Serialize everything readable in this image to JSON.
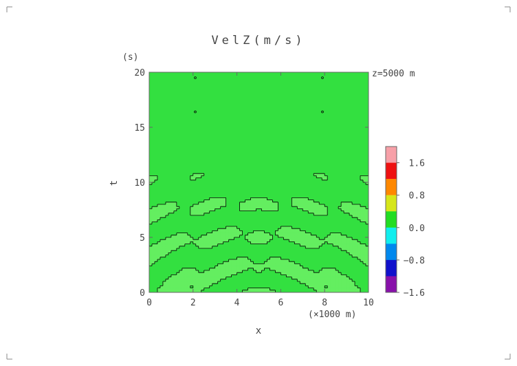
{
  "chart_data": {
    "type": "heatmap",
    "title": "VelZ(m/s)",
    "annotation": "z=5000 m",
    "xlabel": "x",
    "x_unit": "(×1000 m)",
    "ylabel": "t",
    "y_unit": "(s)",
    "xlim": [
      0,
      10
    ],
    "ylim": [
      0,
      20
    ],
    "xticks": [
      "0",
      "2",
      "4",
      "6",
      "8",
      "10"
    ],
    "yticks": [
      "0",
      "5",
      "10",
      "15",
      "20"
    ],
    "colorbar": {
      "tick_labels": [
        "1.6",
        "0.8",
        "0.0",
        "−0.8",
        "−1.6"
      ],
      "tick_values": [
        1.6,
        0.8,
        0.0,
        -0.8,
        -1.6
      ],
      "levels": [
        {
          "max": 2.0,
          "color": "#f7a0a8"
        },
        {
          "max": 1.6,
          "color": "#ee1111"
        },
        {
          "max": 1.2,
          "color": "#ff8800"
        },
        {
          "max": 0.8,
          "color": "#d6e61a"
        },
        {
          "max": 0.4,
          "color": "#22dd22"
        },
        {
          "max": 0.0,
          "color": "#11eeee"
        },
        {
          "max": -0.4,
          "color": "#0088ee"
        },
        {
          "max": -0.8,
          "color": "#1111cc"
        },
        {
          "max": -1.2,
          "color": "#8811aa"
        }
      ]
    },
    "colors": {
      "zero_band": "#33e040",
      "positive_band": "#64ee60",
      "contour": "#000000"
    },
    "field_description_values": {
      "active_region_t": [
        0,
        12.5
      ],
      "center_x": 5
    }
  }
}
